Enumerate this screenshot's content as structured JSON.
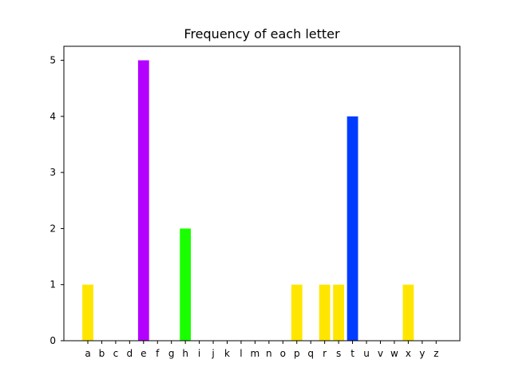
{
  "chart_data": {
    "type": "bar",
    "title": "Frequency of each letter",
    "xlabel": "",
    "ylabel": "",
    "ylim": [
      0,
      5.25
    ],
    "yticks": [
      0,
      1,
      2,
      3,
      4,
      5
    ],
    "categories": [
      "a",
      "b",
      "c",
      "d",
      "e",
      "f",
      "g",
      "h",
      "i",
      "j",
      "k",
      "l",
      "m",
      "n",
      "o",
      "p",
      "q",
      "r",
      "s",
      "t",
      "u",
      "v",
      "w",
      "x",
      "y",
      "z"
    ],
    "values": [
      1,
      0,
      0,
      0,
      5,
      0,
      0,
      2,
      0,
      0,
      0,
      0,
      0,
      0,
      0,
      1,
      0,
      1,
      1,
      4,
      0,
      0,
      0,
      1,
      0,
      0
    ],
    "bar_colors": [
      "#ffe600",
      "#ffe600",
      "#ffe600",
      "#ffe600",
      "#b300ff",
      "#ffe600",
      "#ffe600",
      "#1aff00",
      "#ffe600",
      "#ffe600",
      "#ffe600",
      "#ffe600",
      "#ffe600",
      "#ffe600",
      "#ffe600",
      "#ffe600",
      "#ffe600",
      "#ffe600",
      "#ffe600",
      "#003cff",
      "#ffe600",
      "#ffe600",
      "#ffe600",
      "#ffe600",
      "#ffe600",
      "#ffe600"
    ],
    "grid": false,
    "legend": "none"
  }
}
